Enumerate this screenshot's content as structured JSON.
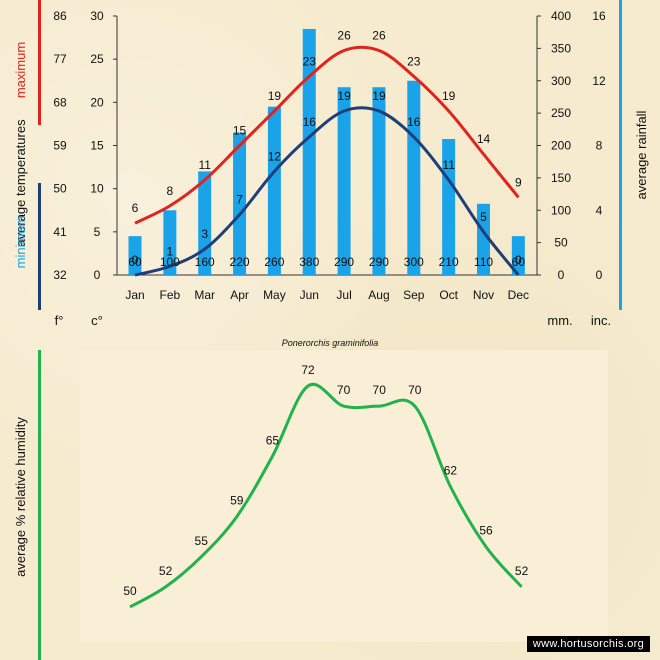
{
  "chart_data": [
    {
      "type": "bar+line",
      "species": "Ponerorchis graminifolia",
      "categories": [
        "Jan",
        "Feb",
        "Mar",
        "Apr",
        "May",
        "Jun",
        "Jul",
        "Aug",
        "Sep",
        "Oct",
        "Nov",
        "Dec"
      ],
      "rainfall_mm": [
        60,
        100,
        160,
        220,
        260,
        380,
        290,
        290,
        300,
        210,
        110,
        60
      ],
      "max_temp_c": [
        6,
        8,
        11,
        15,
        19,
        23,
        26,
        26,
        23,
        19,
        14,
        9
      ],
      "min_temp_c": [
        0,
        1,
        3,
        7,
        12,
        16,
        19,
        19,
        16,
        11,
        5,
        0
      ],
      "axis_f_ticks": [
        "86",
        "77",
        "68",
        "59",
        "50",
        "41",
        "32"
      ],
      "axis_c_ticks": [
        "30",
        "25",
        "20",
        "15",
        "10",
        "5",
        "0"
      ],
      "axis_mm_ticks": [
        "400",
        "350",
        "300",
        "250",
        "200",
        "150",
        "100",
        "50",
        "0"
      ],
      "axis_inch_ticks": [
        "16",
        "12",
        "8",
        "4",
        "0"
      ],
      "ylim_c": [
        0,
        30
      ],
      "ylim_mm": [
        0,
        400
      ],
      "unit_f": "f°",
      "unit_c": "c°",
      "unit_mm": "mm.",
      "unit_inch": "inc.",
      "label_maximum": "maximum",
      "label_average_temperatures": "average  temperatures",
      "label_minimum": "minimum",
      "label_rainfall": "average rainfall",
      "colors": {
        "max": "#e0231c",
        "min": "#1f3e78",
        "rain": "#1aa3e8",
        "humidity": "#22b14c"
      }
    },
    {
      "type": "line",
      "title": "average %  relative humidity",
      "categories": [
        "Jan",
        "Feb",
        "Mar",
        "Apr",
        "May",
        "Jun",
        "Jul",
        "Aug",
        "Sep",
        "Oct",
        "Nov",
        "Dec"
      ],
      "values": [
        50,
        52,
        55,
        59,
        65,
        72,
        70,
        70,
        70,
        62,
        56,
        52
      ]
    }
  ],
  "credit": "www.hortusorchis.org"
}
